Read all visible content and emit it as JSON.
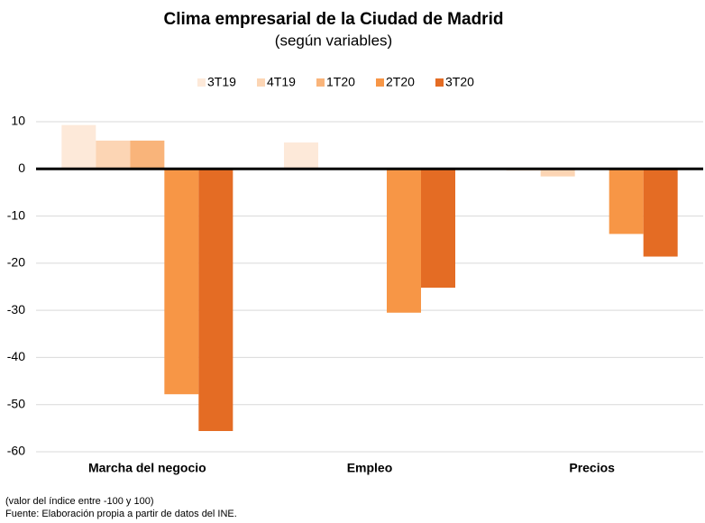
{
  "chart_data": {
    "type": "bar",
    "title": "Clima empresarial de la Ciudad de Madrid",
    "subtitle": "(según variables)",
    "categories": [
      "Marcha del negocio",
      "Empleo",
      "Precios"
    ],
    "series": [
      {
        "name": "3T19",
        "color": "#fde9d9",
        "values": [
          9.3,
          5.6,
          -0.4
        ]
      },
      {
        "name": "4T19",
        "color": "#fcd5b4",
        "values": [
          6,
          null,
          -1.6
        ]
      },
      {
        "name": "1T20",
        "color": "#f9b47a",
        "values": [
          6,
          null,
          null
        ]
      },
      {
        "name": "2T20",
        "color": "#f79646",
        "values": [
          -47.8,
          -30.5,
          -13.8
        ]
      },
      {
        "name": "3T20",
        "color": "#e46c24",
        "values": [
          -55.6,
          -25.2,
          -18.6
        ]
      }
    ],
    "ylim": [
      -60,
      10
    ],
    "yticks": [
      10,
      0,
      -10,
      -20,
      -30,
      -40,
      -50,
      -60
    ],
    "grid": true,
    "legend": "top",
    "notes": [
      "(valor del índice entre -100 y 100)",
      "Fuente: Elaboración propia a partir de datos del INE."
    ]
  }
}
